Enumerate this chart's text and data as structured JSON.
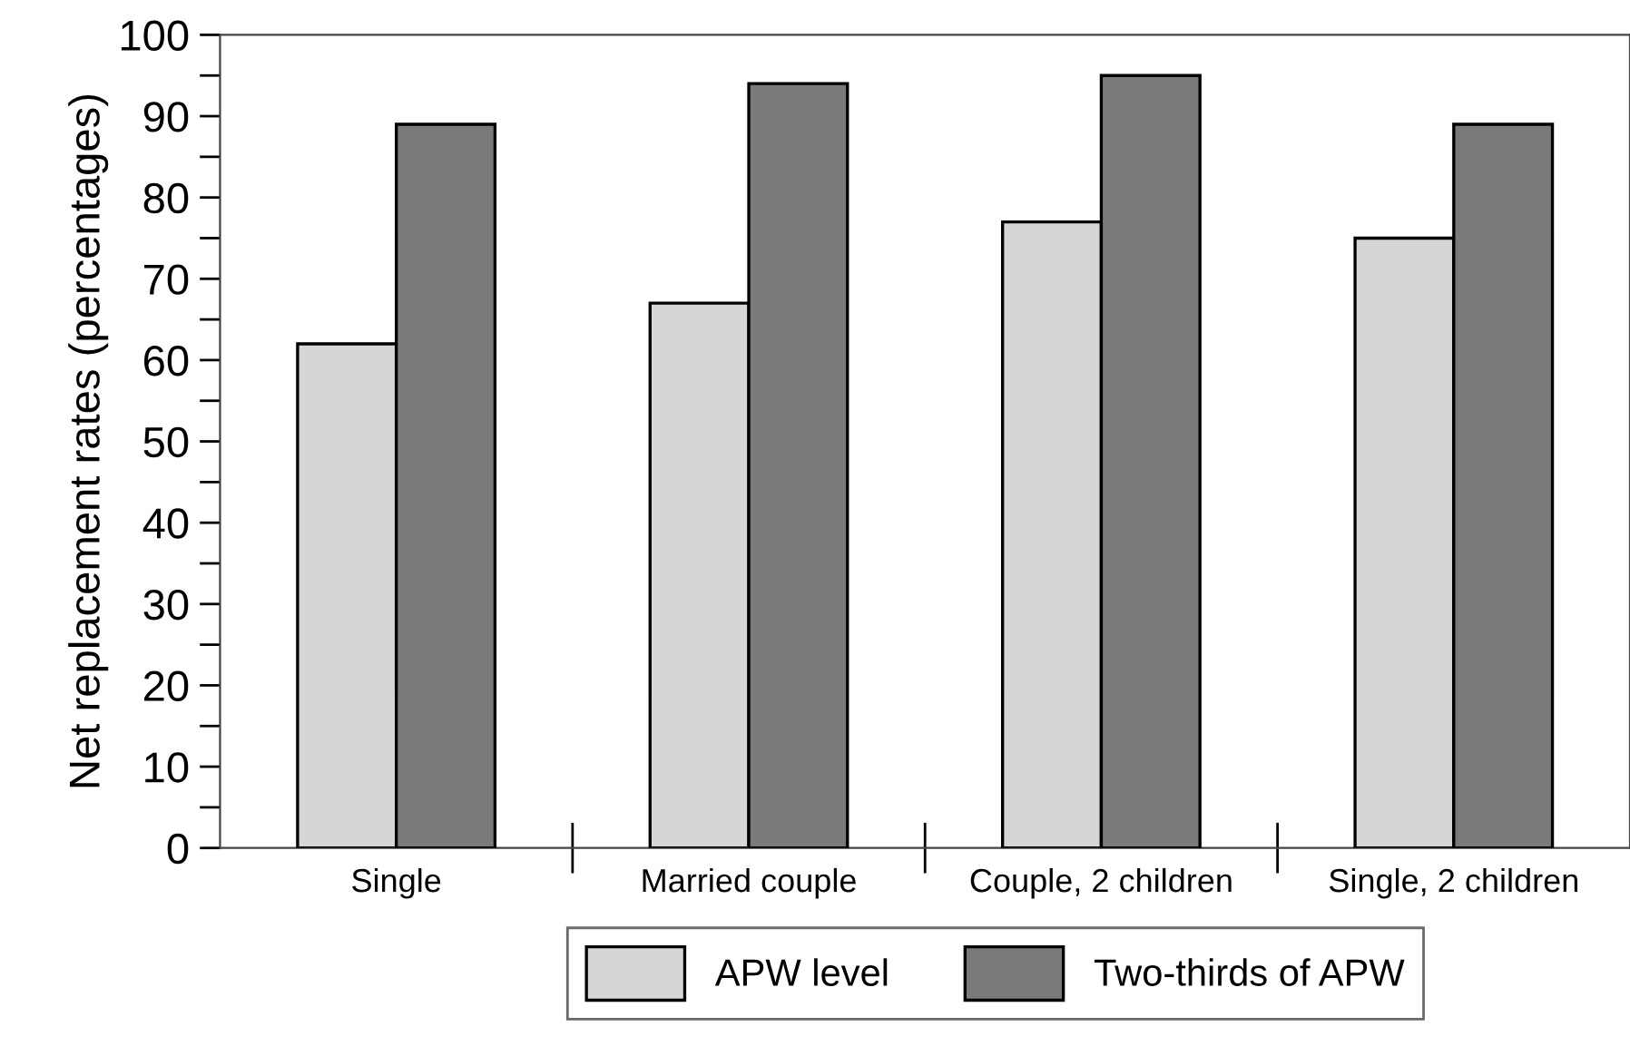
{
  "chart_data": {
    "type": "bar",
    "ylabel": "Net replacement rates (percentages)",
    "categories": [
      "Single",
      "Married couple",
      "Couple, 2 children",
      "Single, 2 children"
    ],
    "series": [
      {
        "name": "APW level",
        "color": "#d6d6d6",
        "values": [
          62,
          67,
          77,
          75
        ]
      },
      {
        "name": "Two-thirds of APW",
        "color": "#7a7a7a",
        "values": [
          89,
          94,
          95,
          89
        ]
      }
    ],
    "ylim": [
      0,
      100
    ],
    "yticks": [
      0,
      {
        "value": 5,
        "label": null
      },
      10,
      {
        "value": 15,
        "label": null
      },
      20,
      {
        "value": 25,
        "label": null
      },
      30,
      {
        "value": 35,
        "label": null
      },
      40,
      {
        "value": 45,
        "label": null
      },
      50,
      {
        "value": 55,
        "label": null
      },
      60,
      {
        "value": 65,
        "label": null
      },
      70,
      {
        "value": 75,
        "label": null
      },
      80,
      {
        "value": 85,
        "label": null
      },
      90,
      {
        "value": 95,
        "label": null
      },
      100
    ],
    "grid": false,
    "legend": "bottom"
  }
}
